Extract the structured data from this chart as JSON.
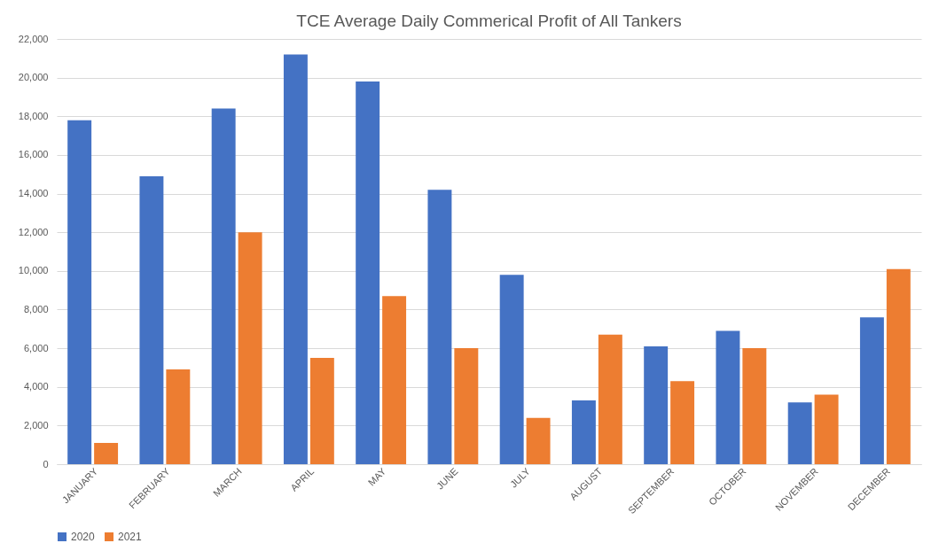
{
  "chart_data": {
    "type": "bar",
    "title": "TCE Average Daily Commerical Profit of All Tankers",
    "categories": [
      "JANUARY",
      "FEBRUARY",
      "MARCH",
      "APRIL",
      "MAY",
      "JUNE",
      "JULY",
      "AUGUST",
      "SEPTEMBER",
      "OCTOBER",
      "NOVEMBER",
      "DECEMBER"
    ],
    "series": [
      {
        "name": "2020",
        "color": "#4472c4",
        "values": [
          17800,
          14900,
          18400,
          21200,
          19800,
          14200,
          9800,
          3300,
          6100,
          6900,
          3200,
          7600
        ]
      },
      {
        "name": "2021",
        "color": "#ed7d31",
        "values": [
          1100,
          4900,
          12000,
          5500,
          8700,
          6000,
          2400,
          6700,
          4300,
          6000,
          3600,
          10100
        ]
      }
    ],
    "ylim": [
      0,
      22000
    ],
    "yticks": [
      0,
      {
        "value": 2000,
        "label": "2,000"
      },
      {
        "value": 4000,
        "label": "4,000"
      },
      {
        "value": 6000,
        "label": "6,000"
      },
      {
        "value": 8000,
        "label": "8,000"
      },
      {
        "value": 10000,
        "label": "10,000"
      },
      {
        "value": 12000,
        "label": "12,000"
      },
      {
        "value": 14000,
        "label": "14,000"
      },
      {
        "value": 16000,
        "label": "16,000"
      },
      {
        "value": 18000,
        "label": "18,000"
      },
      {
        "value": 20000,
        "label": "20,000"
      },
      {
        "value": 22000,
        "label": "22,000"
      }
    ],
    "grid": "y",
    "legend": "bottom"
  }
}
